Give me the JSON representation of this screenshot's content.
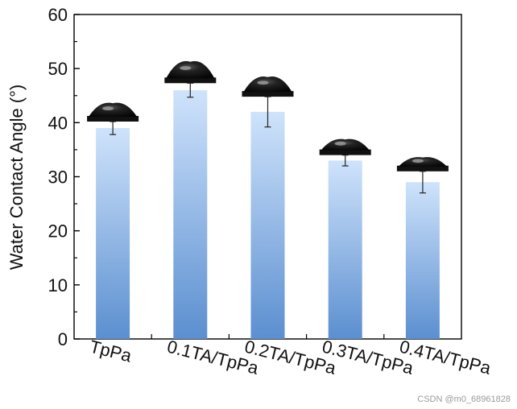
{
  "chart_data": {
    "type": "bar",
    "categories": [
      "TpPa",
      "0.1TA/TpPa",
      "0.2TA/TpPa",
      "0.3TA/TpPa",
      "0.4TA/TpPa"
    ],
    "values": [
      39,
      46,
      42,
      33,
      29
    ],
    "errors": [
      1.2,
      1.3,
      2.8,
      1.0,
      2.0
    ],
    "ylabel": "Water Contact Angle (°)",
    "xlabel": "",
    "ylim": [
      0,
      60
    ],
    "yticks": [
      0,
      10,
      20,
      30,
      40,
      50,
      60
    ],
    "grid": false,
    "bar_color_top": "#cfe3fb",
    "bar_color_bottom": "#5b8fd0",
    "droplet_color": "#111111"
  },
  "watermark": "CSDN @m0_68961828"
}
